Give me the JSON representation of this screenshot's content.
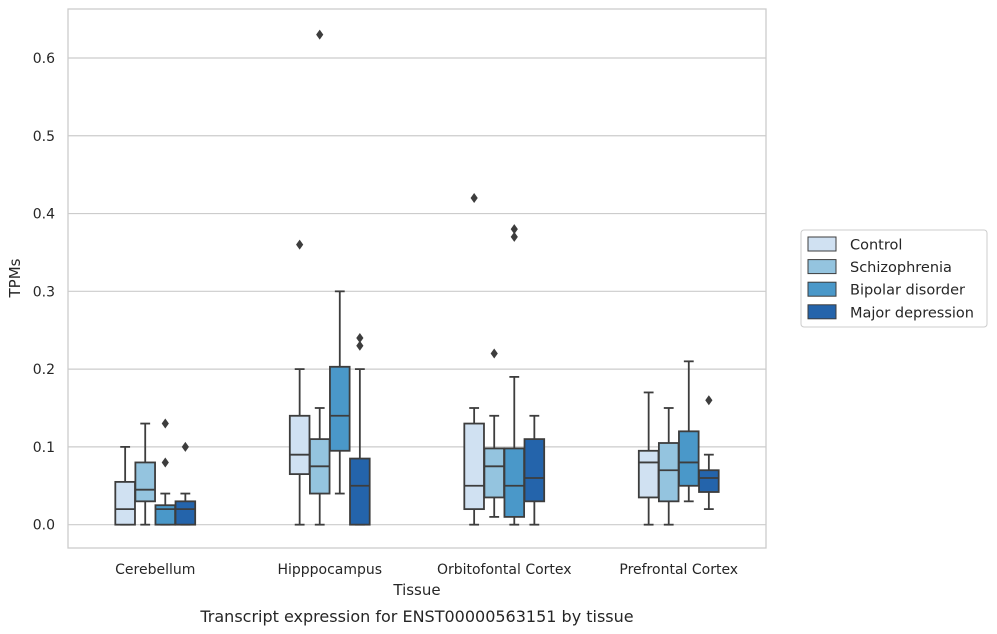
{
  "chart_data": {
    "type": "box",
    "xlabel": "Tissue",
    "ylabel": "TPMs",
    "caption": "Transcript expression for ENST00000563151 by tissue",
    "ylim": [
      -0.03,
      0.663
    ],
    "yticks": [
      0.0,
      0.1,
      0.2,
      0.3,
      0.4,
      0.5,
      0.6
    ],
    "ytick_labels": [
      "0.0",
      "0.1",
      "0.2",
      "0.3",
      "0.4",
      "0.5",
      "0.6"
    ],
    "grid": "horizontal",
    "legend_placement": "right-outside",
    "categories": [
      "Cerebellum",
      "Hipppocampus",
      "Orbitofontal Cortex",
      "Prefrontal Cortex"
    ],
    "series": [
      {
        "name": "Control",
        "color": "#d0e1f2",
        "boxes": [
          {
            "whislo": 0.0,
            "q1": 0.0,
            "med": 0.02,
            "q3": 0.055,
            "whishi": 0.1,
            "fliers": []
          },
          {
            "whislo": 0.0,
            "q1": 0.065,
            "med": 0.09,
            "q3": 0.14,
            "whishi": 0.2,
            "fliers": [
              0.36
            ]
          },
          {
            "whislo": 0.0,
            "q1": 0.02,
            "med": 0.05,
            "q3": 0.13,
            "whishi": 0.15,
            "fliers": [
              0.42
            ]
          },
          {
            "whislo": 0.0,
            "q1": 0.035,
            "med": 0.08,
            "q3": 0.095,
            "whishi": 0.17,
            "fliers": []
          }
        ]
      },
      {
        "name": "Schizophrenia",
        "color": "#94c4df",
        "boxes": [
          {
            "whislo": 0.0,
            "q1": 0.03,
            "med": 0.045,
            "q3": 0.08,
            "whishi": 0.13,
            "fliers": []
          },
          {
            "whislo": 0.0,
            "q1": 0.04,
            "med": 0.075,
            "q3": 0.11,
            "whishi": 0.15,
            "fliers": [
              0.63
            ]
          },
          {
            "whislo": 0.01,
            "q1": 0.035,
            "med": 0.075,
            "q3": 0.098,
            "whishi": 0.14,
            "fliers": [
              0.22
            ]
          },
          {
            "whislo": 0.0,
            "q1": 0.03,
            "med": 0.07,
            "q3": 0.105,
            "whishi": 0.15,
            "fliers": []
          }
        ]
      },
      {
        "name": "Bipolar disorder",
        "color": "#4a98c9",
        "boxes": [
          {
            "whislo": 0.0,
            "q1": 0.0,
            "med": 0.02,
            "q3": 0.025,
            "whishi": 0.04,
            "fliers": [
              0.08,
              0.13
            ]
          },
          {
            "whislo": 0.04,
            "q1": 0.095,
            "med": 0.14,
            "q3": 0.203,
            "whishi": 0.3,
            "fliers": []
          },
          {
            "whislo": 0.0,
            "q1": 0.01,
            "med": 0.05,
            "q3": 0.098,
            "whishi": 0.19,
            "fliers": [
              0.37,
              0.38
            ]
          },
          {
            "whislo": 0.03,
            "q1": 0.05,
            "med": 0.08,
            "q3": 0.12,
            "whishi": 0.21,
            "fliers": []
          }
        ]
      },
      {
        "name": "Major depression",
        "color": "#2464ab",
        "boxes": [
          {
            "whislo": 0.0,
            "q1": 0.0,
            "med": 0.02,
            "q3": 0.03,
            "whishi": 0.04,
            "fliers": [
              0.1
            ]
          },
          {
            "whislo": 0.0,
            "q1": 0.0,
            "med": 0.05,
            "q3": 0.085,
            "whishi": 0.2,
            "fliers": [
              0.23,
              0.24
            ]
          },
          {
            "whislo": 0.0,
            "q1": 0.03,
            "med": 0.06,
            "q3": 0.11,
            "whishi": 0.14,
            "fliers": []
          },
          {
            "whislo": 0.02,
            "q1": 0.042,
            "med": 0.06,
            "q3": 0.07,
            "whishi": 0.09,
            "fliers": [
              0.16
            ]
          }
        ]
      }
    ],
    "colors": {
      "grid": "#cccccc",
      "frame": "#cccccc",
      "line": "#3d3d3d"
    }
  }
}
